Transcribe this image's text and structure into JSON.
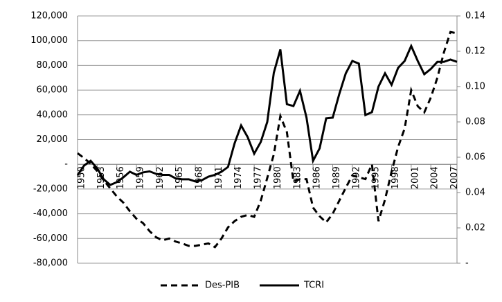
{
  "chart_data": {
    "type": "line",
    "x": [
      1950,
      1951,
      1952,
      1953,
      1954,
      1955,
      1956,
      1957,
      1958,
      1959,
      1960,
      1961,
      1962,
      1963,
      1964,
      1965,
      1966,
      1967,
      1968,
      1969,
      1970,
      1971,
      1972,
      1973,
      1974,
      1975,
      1976,
      1977,
      1978,
      1979,
      1980,
      1981,
      1982,
      1983,
      1984,
      1985,
      1986,
      1987,
      1988,
      1989,
      1990,
      1991,
      1992,
      1993,
      1994,
      1995,
      1996,
      1997,
      1998,
      1999,
      2000,
      2001,
      2002,
      2003,
      2004,
      2005,
      2006,
      2007,
      2008
    ],
    "xlim": [
      1950,
      2008
    ],
    "xticks": [
      1950,
      1953,
      1956,
      1959,
      1962,
      1965,
      1968,
      1971,
      1974,
      1977,
      1980,
      1983,
      1986,
      1989,
      1992,
      1995,
      1998,
      2001,
      2004,
      2007
    ],
    "ylim": [
      -80000,
      120000
    ],
    "yticks": [
      {
        "value": -80000,
        "label": "-80,000"
      },
      {
        "value": -60000,
        "label": "-60,000"
      },
      {
        "value": -40000,
        "label": "-40,000"
      },
      {
        "value": -20000,
        "label": "-20,000"
      },
      {
        "value": 0,
        "label": "-"
      },
      {
        "value": 20000,
        "label": "20,000"
      },
      {
        "value": 40000,
        "label": "40,000"
      },
      {
        "value": 60000,
        "label": "60,000"
      },
      {
        "value": 80000,
        "label": "80,000"
      },
      {
        "value": 100000,
        "label": "100,000"
      },
      {
        "value": 120000,
        "label": "120,000"
      }
    ],
    "y2lim": [
      0,
      0.14
    ],
    "y2ticks": [
      {
        "value": 0,
        "label": "-"
      },
      0.02,
      0.04,
      0.06,
      0.08,
      {
        "value": 0.1,
        "label": "0.10"
      },
      0.12,
      0.14
    ],
    "grid": true,
    "legend": "bottom",
    "series": [
      {
        "name": "Des-PIB",
        "color": "#000000",
        "style": "dashed",
        "values": [
          9000,
          5000,
          500,
          -5500,
          -13000,
          -19500,
          -26000,
          -31000,
          -38000,
          -44000,
          -47500,
          -54000,
          -59000,
          -61500,
          -60000,
          -62500,
          -64000,
          -66000,
          -66000,
          -65000,
          -64000,
          -67000,
          -60000,
          -51000,
          -46000,
          -42500,
          -41000,
          -42500,
          -29500,
          -11000,
          8000,
          39000,
          26000,
          -14000,
          -12000,
          -12000,
          -35000,
          -42000,
          -47000,
          -40000,
          -29500,
          -19000,
          -9000,
          -10500,
          -12000,
          0,
          -46000,
          -28500,
          -6000,
          14000,
          29000,
          60000,
          47000,
          42000,
          54000,
          70000,
          90500,
          107000,
          106000
        ]
      },
      {
        "name": "TCRI",
        "color": "#000000",
        "style": "solid",
        "axis": "y2",
        "values": [
          0.0498,
          0.0553,
          0.058,
          0.0537,
          0.0475,
          0.0443,
          0.0459,
          0.0486,
          0.0518,
          0.05,
          0.0514,
          0.052,
          0.0506,
          0.05,
          0.05,
          0.048,
          0.0475,
          0.0475,
          0.0463,
          0.047,
          0.049,
          0.05,
          0.0518,
          0.0545,
          0.0678,
          0.078,
          0.0714,
          0.062,
          0.0686,
          0.08,
          0.1078,
          0.121,
          0.09,
          0.089,
          0.0976,
          0.0824,
          0.058,
          0.065,
          0.082,
          0.0824,
          0.0957,
          0.1075,
          0.1145,
          0.113,
          0.0839,
          0.0855,
          0.1,
          0.1075,
          0.101,
          0.1106,
          0.1145,
          0.123,
          0.1145,
          0.107,
          0.11,
          0.114,
          0.114,
          0.1153,
          0.114
        ]
      }
    ]
  }
}
